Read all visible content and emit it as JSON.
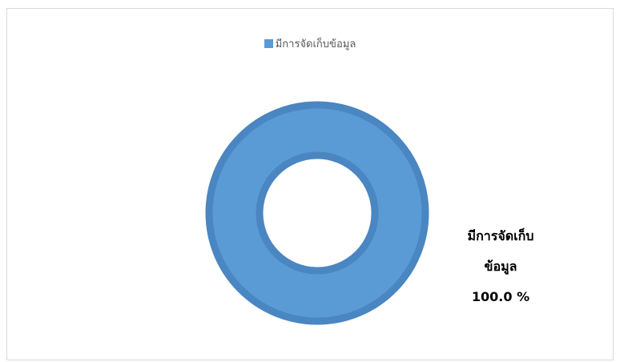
{
  "chart_data": {
    "type": "pie",
    "variant": "doughnut",
    "categories": [
      "มีการจัดเก็บข้อมูล"
    ],
    "values": [
      100.0
    ],
    "series": [
      {
        "name": "มีการจัดเก็บข้อมูล",
        "values": [
          100.0
        ]
      }
    ],
    "legend": "top-center",
    "data_labels": {
      "line1": "มีการจัดเก็บ",
      "line2": "ข้อมูล",
      "value": "100.0 %"
    },
    "colors": {
      "fill": "#5b9bd5",
      "edge": "#4a86c1",
      "frame_border": "#d9d9d9"
    }
  }
}
